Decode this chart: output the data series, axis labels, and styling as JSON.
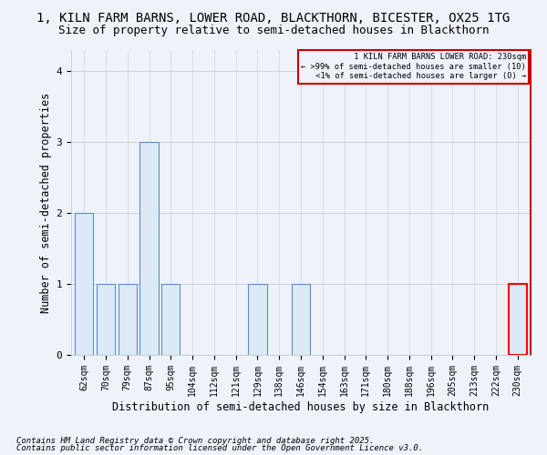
{
  "title1": "1, KILN FARM BARNS, LOWER ROAD, BLACKTHORN, BICESTER, OX25 1TG",
  "title2": "Size of property relative to semi-detached houses in Blackthorn",
  "xlabel": "Distribution of semi-detached houses by size in Blackthorn",
  "ylabel": "Number of semi-detached properties",
  "categories": [
    "62sqm",
    "70sqm",
    "79sqm",
    "87sqm",
    "95sqm",
    "104sqm",
    "112sqm",
    "121sqm",
    "129sqm",
    "138sqm",
    "146sqm",
    "154sqm",
    "163sqm",
    "171sqm",
    "180sqm",
    "188sqm",
    "196sqm",
    "205sqm",
    "213sqm",
    "222sqm",
    "230sqm"
  ],
  "values": [
    2,
    1,
    1,
    3,
    1,
    0,
    0,
    0,
    1,
    0,
    1,
    0,
    0,
    0,
    0,
    0,
    0,
    0,
    0,
    0,
    1
  ],
  "bar_color_normal": "#dce9f7",
  "bar_edge_color_normal": "#5b8fc9",
  "bar_edge_color_highlight": "#ff0000",
  "highlight_index": 20,
  "ylim": [
    0,
    4.3
  ],
  "yticks": [
    0,
    1,
    2,
    3,
    4
  ],
  "legend_title": "1 KILN FARM BARNS LOWER ROAD: 230sqm",
  "legend_line1": ">99% of semi-detached houses are smaller (10)",
  "legend_line2": "<1% of semi-detached houses are larger (0)",
  "footer1": "Contains HM Land Registry data © Crown copyright and database right 2025.",
  "footer2": "Contains public sector information licensed under the Open Government Licence v3.0.",
  "bg_color": "#eef2f9",
  "title_fontsize": 10,
  "subtitle_fontsize": 9,
  "axis_fontsize": 8.5,
  "tick_fontsize": 7,
  "footer_fontsize": 6.5
}
